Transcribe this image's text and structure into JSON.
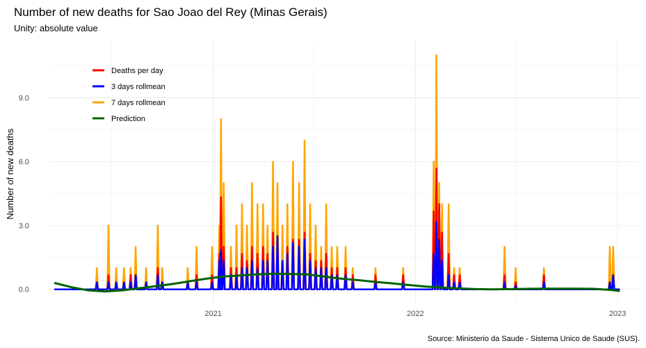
{
  "chart_data": {
    "type": "line",
    "title": "Number of new deaths for Sao Joao del Rey (Minas Gerais)",
    "subtitle": "Unity: absolute value",
    "ylabel": "Number of new deaths",
    "xlabel": "",
    "caption": "Source: Ministerio da Saude - Sistema Unico de Saude (SUS).",
    "ylim": [
      -0.6,
      11.7
    ],
    "xlim": [
      "2020-03-10",
      "2023-02-10"
    ],
    "yticks": [
      0,
      3,
      6,
      9
    ],
    "ytick_labels": [
      "0.0",
      "3.0",
      "6.0",
      "9.0"
    ],
    "xticks": [
      "2021-01-01",
      "2022-01-01",
      "2023-01-01"
    ],
    "xtick_labels": [
      "2021",
      "2022",
      "2023"
    ],
    "grid": true,
    "legend_position": "top-left",
    "series": [
      {
        "name": "Deaths per day",
        "color": "#ff0000",
        "points": [
          [
            "2020-06-05",
            0.33
          ],
          [
            "2020-06-26",
            0.67
          ],
          [
            "2020-07-10",
            0.33
          ],
          [
            "2020-07-24",
            0.33
          ],
          [
            "2020-08-05",
            0.67
          ],
          [
            "2020-08-14",
            0.67
          ],
          [
            "2020-09-02",
            0.33
          ],
          [
            "2020-09-23",
            1.0
          ],
          [
            "2020-10-01",
            0.33
          ],
          [
            "2020-11-16",
            0.33
          ],
          [
            "2020-12-02",
            0.67
          ],
          [
            "2020-12-30",
            0.67
          ],
          [
            "2021-01-12",
            1.67
          ],
          [
            "2021-01-15",
            4.33
          ],
          [
            "2021-01-20",
            2.0
          ],
          [
            "2021-02-02",
            1.0
          ],
          [
            "2021-02-12",
            1.0
          ],
          [
            "2021-02-22",
            1.67
          ],
          [
            "2021-03-03",
            1.33
          ],
          [
            "2021-03-12",
            2.0
          ],
          [
            "2021-03-22",
            1.67
          ],
          [
            "2021-04-01",
            2.0
          ],
          [
            "2021-04-09",
            1.67
          ],
          [
            "2021-04-19",
            2.67
          ],
          [
            "2021-04-27",
            2.33
          ],
          [
            "2021-05-06",
            1.33
          ],
          [
            "2021-05-15",
            2.0
          ],
          [
            "2021-05-25",
            2.33
          ],
          [
            "2021-06-05",
            2.33
          ],
          [
            "2021-06-15",
            2.67
          ],
          [
            "2021-06-25",
            1.67
          ],
          [
            "2021-07-05",
            1.33
          ],
          [
            "2021-07-15",
            1.33
          ],
          [
            "2021-07-24",
            1.67
          ],
          [
            "2021-08-03",
            1.0
          ],
          [
            "2021-08-13",
            1.0
          ],
          [
            "2021-08-28",
            1.0
          ],
          [
            "2021-09-10",
            0.67
          ],
          [
            "2021-10-21",
            0.67
          ],
          [
            "2021-12-10",
            0.67
          ],
          [
            "2022-02-03",
            3.67
          ],
          [
            "2022-02-08",
            5.67
          ],
          [
            "2022-02-13",
            4.0
          ],
          [
            "2022-02-18",
            2.67
          ],
          [
            "2022-03-02",
            1.67
          ],
          [
            "2022-03-12",
            0.67
          ],
          [
            "2022-03-22",
            0.67
          ],
          [
            "2022-06-11",
            0.67
          ],
          [
            "2022-07-01",
            0.33
          ],
          [
            "2022-08-21",
            0.67
          ],
          [
            "2022-12-18",
            0.33
          ],
          [
            "2022-12-24",
            0.67
          ]
        ]
      },
      {
        "name": "3 days rollmean",
        "color": "#0000ff",
        "points": [
          [
            "2020-06-05",
            0.33
          ],
          [
            "2020-06-26",
            0.33
          ],
          [
            "2020-07-10",
            0.33
          ],
          [
            "2020-07-24",
            0.33
          ],
          [
            "2020-08-05",
            0.33
          ],
          [
            "2020-08-14",
            0.67
          ],
          [
            "2020-09-02",
            0.33
          ],
          [
            "2020-09-23",
            0.67
          ],
          [
            "2020-10-01",
            0.33
          ],
          [
            "2020-11-16",
            0.33
          ],
          [
            "2020-12-02",
            0.33
          ],
          [
            "2020-12-30",
            0.33
          ],
          [
            "2021-01-12",
            1.33
          ],
          [
            "2021-01-15",
            1.83
          ],
          [
            "2021-01-20",
            1.33
          ],
          [
            "2021-02-02",
            0.67
          ],
          [
            "2021-02-12",
            0.67
          ],
          [
            "2021-02-22",
            1.0
          ],
          [
            "2021-03-03",
            1.0
          ],
          [
            "2021-03-12",
            1.33
          ],
          [
            "2021-03-22",
            1.0
          ],
          [
            "2021-04-01",
            1.33
          ],
          [
            "2021-04-09",
            1.33
          ],
          [
            "2021-04-19",
            2.0
          ],
          [
            "2021-04-27",
            2.5
          ],
          [
            "2021-05-06",
            1.33
          ],
          [
            "2021-05-15",
            1.67
          ],
          [
            "2021-05-25",
            2.17
          ],
          [
            "2021-06-05",
            2.0
          ],
          [
            "2021-06-15",
            2.33
          ],
          [
            "2021-06-25",
            1.33
          ],
          [
            "2021-07-05",
            1.0
          ],
          [
            "2021-07-15",
            1.0
          ],
          [
            "2021-07-24",
            1.0
          ],
          [
            "2021-08-03",
            0.67
          ],
          [
            "2021-08-13",
            0.67
          ],
          [
            "2021-08-28",
            0.67
          ],
          [
            "2021-09-10",
            0.33
          ],
          [
            "2021-10-21",
            0.33
          ],
          [
            "2021-12-10",
            0.33
          ],
          [
            "2022-02-03",
            1.67
          ],
          [
            "2022-02-08",
            3.17
          ],
          [
            "2022-02-13",
            2.33
          ],
          [
            "2022-02-18",
            1.33
          ],
          [
            "2022-03-02",
            0.67
          ],
          [
            "2022-03-12",
            0.33
          ],
          [
            "2022-03-22",
            0.33
          ],
          [
            "2022-06-11",
            0.33
          ],
          [
            "2022-07-01",
            0.17
          ],
          [
            "2022-08-21",
            0.33
          ],
          [
            "2022-12-18",
            0.33
          ],
          [
            "2022-12-24",
            0.67
          ]
        ]
      },
      {
        "name": "7 days rollmean",
        "color": "#ffa500",
        "points": [
          [
            "2020-06-05",
            1.0
          ],
          [
            "2020-06-26",
            3.0
          ],
          [
            "2020-07-10",
            1.0
          ],
          [
            "2020-07-24",
            1.0
          ],
          [
            "2020-08-05",
            1.0
          ],
          [
            "2020-08-14",
            2.0
          ],
          [
            "2020-09-02",
            1.0
          ],
          [
            "2020-09-23",
            3.0
          ],
          [
            "2020-10-01",
            1.0
          ],
          [
            "2020-11-16",
            1.0
          ],
          [
            "2020-12-02",
            2.0
          ],
          [
            "2020-12-30",
            2.0
          ],
          [
            "2021-01-12",
            3.0
          ],
          [
            "2021-01-15",
            8.0
          ],
          [
            "2021-01-20",
            5.0
          ],
          [
            "2021-02-02",
            2.0
          ],
          [
            "2021-02-12",
            3.0
          ],
          [
            "2021-02-22",
            4.0
          ],
          [
            "2021-03-03",
            3.0
          ],
          [
            "2021-03-12",
            5.0
          ],
          [
            "2021-03-22",
            4.0
          ],
          [
            "2021-04-01",
            4.0
          ],
          [
            "2021-04-09",
            3.0
          ],
          [
            "2021-04-19",
            6.0
          ],
          [
            "2021-04-27",
            5.0
          ],
          [
            "2021-05-06",
            3.0
          ],
          [
            "2021-05-15",
            4.0
          ],
          [
            "2021-05-25",
            6.0
          ],
          [
            "2021-06-05",
            5.0
          ],
          [
            "2021-06-15",
            7.0
          ],
          [
            "2021-06-25",
            4.0
          ],
          [
            "2021-07-05",
            3.0
          ],
          [
            "2021-07-15",
            2.0
          ],
          [
            "2021-07-24",
            4.0
          ],
          [
            "2021-08-03",
            2.0
          ],
          [
            "2021-08-13",
            2.0
          ],
          [
            "2021-08-28",
            2.0
          ],
          [
            "2021-09-10",
            1.0
          ],
          [
            "2021-10-21",
            1.0
          ],
          [
            "2021-12-10",
            1.0
          ],
          [
            "2022-02-03",
            6.0
          ],
          [
            "2022-02-08",
            11.0
          ],
          [
            "2022-02-13",
            5.0
          ],
          [
            "2022-02-18",
            4.0
          ],
          [
            "2022-03-02",
            4.0
          ],
          [
            "2022-03-12",
            1.0
          ],
          [
            "2022-03-22",
            1.0
          ],
          [
            "2022-06-11",
            2.0
          ],
          [
            "2022-07-01",
            1.0
          ],
          [
            "2022-08-21",
            1.0
          ],
          [
            "2022-12-18",
            2.0
          ],
          [
            "2022-12-24",
            2.0
          ]
        ]
      },
      {
        "name": "Prediction",
        "color": "#006400",
        "points": [
          [
            "2020-03-20",
            0.3
          ],
          [
            "2020-04-20",
            0.1
          ],
          [
            "2020-05-20",
            -0.05
          ],
          [
            "2020-06-20",
            -0.1
          ],
          [
            "2020-07-20",
            -0.05
          ],
          [
            "2020-08-20",
            0.05
          ],
          [
            "2020-09-20",
            0.15
          ],
          [
            "2020-10-20",
            0.25
          ],
          [
            "2020-11-20",
            0.38
          ],
          [
            "2020-12-20",
            0.5
          ],
          [
            "2021-01-20",
            0.6
          ],
          [
            "2021-02-20",
            0.65
          ],
          [
            "2021-03-20",
            0.7
          ],
          [
            "2021-04-20",
            0.73
          ],
          [
            "2021-05-20",
            0.72
          ],
          [
            "2021-06-20",
            0.7
          ],
          [
            "2021-07-20",
            0.6
          ],
          [
            "2021-08-20",
            0.5
          ],
          [
            "2021-09-20",
            0.43
          ],
          [
            "2021-10-20",
            0.35
          ],
          [
            "2021-11-20",
            0.28
          ],
          [
            "2021-12-20",
            0.2
          ],
          [
            "2022-01-20",
            0.13
          ],
          [
            "2022-02-20",
            0.08
          ],
          [
            "2022-03-20",
            0.04
          ],
          [
            "2022-04-20",
            0.01
          ],
          [
            "2022-05-20",
            0.0
          ],
          [
            "2022-06-20",
            0.01
          ],
          [
            "2022-07-20",
            0.02
          ],
          [
            "2022-08-20",
            0.03
          ],
          [
            "2022-09-20",
            0.03
          ],
          [
            "2022-10-20",
            0.03
          ],
          [
            "2022-11-20",
            0.02
          ],
          [
            "2022-12-20",
            -0.03
          ],
          [
            "2023-01-05",
            -0.08
          ]
        ]
      }
    ]
  }
}
